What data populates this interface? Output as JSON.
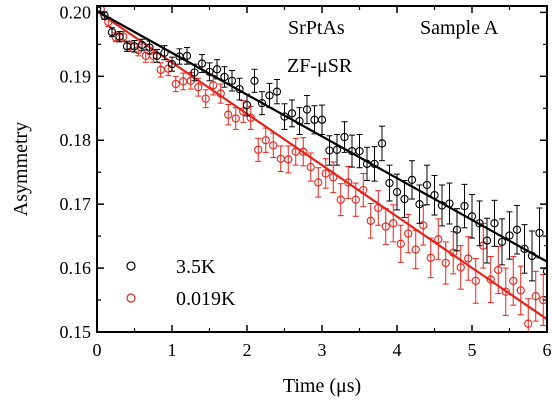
{
  "chart_data": {
    "type": "scatter",
    "xlabel": "Time (μs)",
    "ylabel": "Asymmetry",
    "xlim": [
      0,
      6
    ],
    "ylim": [
      0.15,
      0.201
    ],
    "x_ticks": [
      0,
      1,
      2,
      3,
      4,
      5,
      6
    ],
    "y_ticks": [
      0.15,
      0.16,
      0.17,
      0.18,
      0.19,
      0.2
    ],
    "x_tick_labels": [
      "0",
      "1",
      "2",
      "3",
      "4",
      "5",
      "6"
    ],
    "y_tick_labels": [
      "0.15",
      "0.16",
      "0.17",
      "0.18",
      "0.19",
      "0.20"
    ],
    "grid": false,
    "legend_position": "bottom-left",
    "annotations": {
      "compound": "SrPtAs",
      "technique": "ZF-μSR",
      "sample": "Sample A"
    },
    "series": [
      {
        "name": "3.5K",
        "color": "#000000",
        "marker": "open-circle",
        "x": [
          0.0,
          0.1,
          0.2,
          0.3,
          0.4,
          0.5,
          0.6,
          0.7,
          0.8,
          0.9,
          1.0,
          1.1,
          1.2,
          1.3,
          1.4,
          1.5,
          1.6,
          1.7,
          1.8,
          1.9,
          2.0,
          2.1,
          2.2,
          2.3,
          2.4,
          2.5,
          2.6,
          2.7,
          2.8,
          2.9,
          3.0,
          3.1,
          3.2,
          3.3,
          3.4,
          3.5,
          3.6,
          3.7,
          3.8,
          3.9,
          4.0,
          4.1,
          4.2,
          4.3,
          4.4,
          4.5,
          4.6,
          4.7,
          4.8,
          4.9,
          5.0,
          5.1,
          5.2,
          5.3,
          5.4,
          5.5,
          5.6,
          5.7,
          5.8,
          5.9,
          6.0
        ],
        "y": [
          0.2005,
          0.1995,
          0.1969,
          0.1962,
          0.1947,
          0.1947,
          0.1949,
          0.1945,
          0.1932,
          0.1937,
          0.1919,
          0.1931,
          0.1932,
          0.1906,
          0.192,
          0.1907,
          0.1911,
          0.1899,
          0.1893,
          0.188,
          0.1855,
          0.1893,
          0.1858,
          0.187,
          0.1876,
          0.1837,
          0.1842,
          0.183,
          0.1848,
          0.1832,
          0.1832,
          0.1784,
          0.1785,
          0.1805,
          0.1783,
          0.1783,
          0.1763,
          0.1763,
          0.1795,
          0.1733,
          0.1719,
          0.1708,
          0.1738,
          0.17,
          0.173,
          0.1714,
          0.1698,
          0.1701,
          0.166,
          0.1697,
          0.1681,
          0.167,
          0.1643,
          0.167,
          0.1641,
          0.1651,
          0.166,
          0.163,
          0.1619,
          0.1655,
          0.1595
        ],
        "error": [
          0.0003,
          0.0006,
          0.0007,
          0.0008,
          0.0008,
          0.0009,
          0.0009,
          0.001,
          0.001,
          0.0011,
          0.0011,
          0.0012,
          0.0013,
          0.0013,
          0.0014,
          0.0014,
          0.0015,
          0.0016,
          0.0016,
          0.0017,
          0.0017,
          0.0018,
          0.0018,
          0.0019,
          0.0019,
          0.002,
          0.0021,
          0.0021,
          0.0022,
          0.0022,
          0.0023,
          0.0023,
          0.0024,
          0.0024,
          0.0025,
          0.0026,
          0.0026,
          0.0027,
          0.0027,
          0.0028,
          0.0028,
          0.0029,
          0.003,
          0.003,
          0.0031,
          0.0031,
          0.0032,
          0.0032,
          0.0033,
          0.0034,
          0.0034,
          0.0035,
          0.0035,
          0.0036,
          0.0036,
          0.0037,
          0.0038,
          0.0038,
          0.0039,
          0.0039,
          0.004
        ],
        "fit": {
          "x": [
            0,
            6
          ],
          "y": [
            0.2002,
            0.161
          ]
        }
      },
      {
        "name": "0.019K",
        "color": "#e8231b",
        "marker": "open-circle",
        "x": [
          0.05,
          0.15,
          0.25,
          0.35,
          0.45,
          0.55,
          0.65,
          0.75,
          0.85,
          0.95,
          1.05,
          1.15,
          1.25,
          1.35,
          1.45,
          1.55,
          1.65,
          1.75,
          1.85,
          1.95,
          2.05,
          2.15,
          2.25,
          2.35,
          2.45,
          2.55,
          2.65,
          2.75,
          2.85,
          2.95,
          3.05,
          3.15,
          3.25,
          3.35,
          3.45,
          3.55,
          3.65,
          3.75,
          3.85,
          3.95,
          4.05,
          4.15,
          4.25,
          4.35,
          4.45,
          4.55,
          4.65,
          4.75,
          4.85,
          4.95,
          5.05,
          5.15,
          5.25,
          5.35,
          5.45,
          5.55,
          5.65,
          5.75,
          5.85,
          5.95
        ],
        "y": [
          0.2005,
          0.1985,
          0.1961,
          0.1962,
          0.1947,
          0.1941,
          0.1932,
          0.1932,
          0.191,
          0.1912,
          0.1888,
          0.1892,
          0.1893,
          0.1883,
          0.1865,
          0.1886,
          0.1873,
          0.184,
          0.1834,
          0.1845,
          0.1835,
          0.1785,
          0.18,
          0.1792,
          0.1771,
          0.177,
          0.1782,
          0.1782,
          0.1758,
          0.1734,
          0.1748,
          0.1742,
          0.1707,
          0.1734,
          0.1707,
          0.1722,
          0.1674,
          0.1694,
          0.1665,
          0.167,
          0.1638,
          0.1654,
          0.1629,
          0.1667,
          0.1616,
          0.1645,
          0.1608,
          0.1624,
          0.1601,
          0.1615,
          0.158,
          0.1635,
          0.1582,
          0.1597,
          0.1563,
          0.158,
          0.1565,
          0.1513,
          0.1556,
          0.155
        ],
        "error": [
          0.0005,
          0.0007,
          0.0007,
          0.0008,
          0.0008,
          0.0009,
          0.001,
          0.001,
          0.0011,
          0.0011,
          0.0012,
          0.0013,
          0.0013,
          0.0014,
          0.0014,
          0.0015,
          0.0015,
          0.0016,
          0.0017,
          0.0017,
          0.0018,
          0.0018,
          0.0019,
          0.0019,
          0.002,
          0.0021,
          0.0021,
          0.0022,
          0.0022,
          0.0023,
          0.0023,
          0.0024,
          0.0025,
          0.0025,
          0.0026,
          0.0026,
          0.0027,
          0.0027,
          0.0028,
          0.0029,
          0.0029,
          0.003,
          0.003,
          0.0031,
          0.0031,
          0.0032,
          0.0033,
          0.0033,
          0.0034,
          0.0034,
          0.0035,
          0.0035,
          0.0036,
          0.0037,
          0.0037,
          0.0038,
          0.0038,
          0.0039,
          0.0039,
          0.004
        ],
        "fit": {
          "x": [
            0,
            6
          ],
          "y": [
            0.2002,
            0.152
          ]
        }
      }
    ]
  }
}
